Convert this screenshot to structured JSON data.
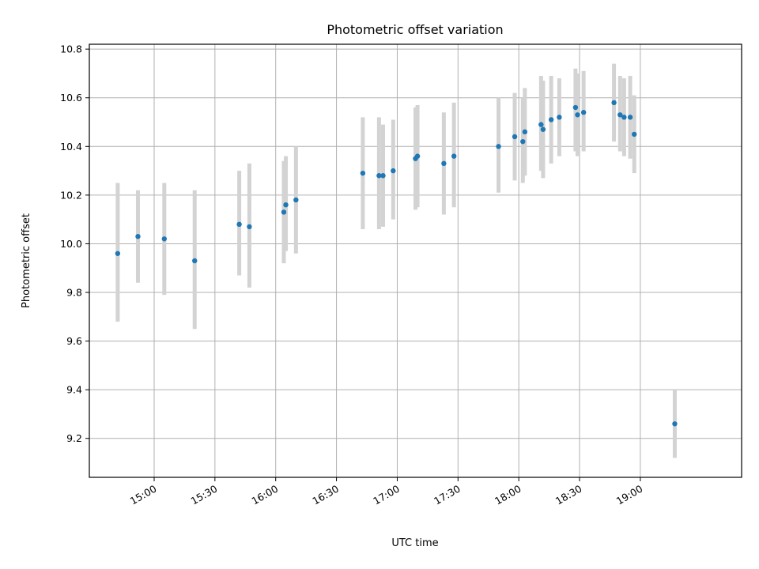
{
  "chart_data": {
    "type": "scatter",
    "title": "Photometric offset variation",
    "xlabel": "UTC time",
    "ylabel": "Photometric offset",
    "xlim": [
      "14:28",
      "19:50"
    ],
    "ylim": [
      9.04,
      10.82
    ],
    "x_ticks": [
      "15:00",
      "15:30",
      "16:00",
      "16:30",
      "17:00",
      "17:30",
      "18:00",
      "18:30",
      "19:00"
    ],
    "y_ticks": [
      "9.2",
      "9.4",
      "9.6",
      "9.8",
      "10.0",
      "10.2",
      "10.4",
      "10.6",
      "10.8"
    ],
    "grid": true,
    "colors": {
      "marker": "#1f77b4",
      "errorbar": "#d3d3d3"
    },
    "series": [
      {
        "points": [
          {
            "x": "14:42",
            "y": 9.96,
            "low": 9.68,
            "high": 10.25
          },
          {
            "x": "14:52",
            "y": 10.03,
            "low": 9.84,
            "high": 10.22
          },
          {
            "x": "15:05",
            "y": 10.02,
            "low": 9.79,
            "high": 10.25
          },
          {
            "x": "15:20",
            "y": 9.93,
            "low": 9.65,
            "high": 10.22
          },
          {
            "x": "15:42",
            "y": 10.08,
            "low": 9.87,
            "high": 10.3
          },
          {
            "x": "15:47",
            "y": 10.07,
            "low": 9.82,
            "high": 10.33
          },
          {
            "x": "16:04",
            "y": 10.13,
            "low": 9.92,
            "high": 10.34
          },
          {
            "x": "16:05",
            "y": 10.16,
            "low": 9.97,
            "high": 10.36
          },
          {
            "x": "16:10",
            "y": 10.18,
            "low": 9.96,
            "high": 10.4
          },
          {
            "x": "16:43",
            "y": 10.29,
            "low": 10.06,
            "high": 10.52
          },
          {
            "x": "16:51",
            "y": 10.28,
            "low": 10.06,
            "high": 10.52
          },
          {
            "x": "16:53",
            "y": 10.28,
            "low": 10.07,
            "high": 10.49
          },
          {
            "x": "16:58",
            "y": 10.3,
            "low": 10.1,
            "high": 10.51
          },
          {
            "x": "17:09",
            "y": 10.35,
            "low": 10.14,
            "high": 10.56
          },
          {
            "x": "17:10",
            "y": 10.36,
            "low": 10.15,
            "high": 10.57
          },
          {
            "x": "17:23",
            "y": 10.33,
            "low": 10.12,
            "high": 10.54
          },
          {
            "x": "17:28",
            "y": 10.36,
            "low": 10.15,
            "high": 10.58
          },
          {
            "x": "17:50",
            "y": 10.4,
            "low": 10.21,
            "high": 10.6
          },
          {
            "x": "17:58",
            "y": 10.44,
            "low": 10.26,
            "high": 10.62
          },
          {
            "x": "18:02",
            "y": 10.42,
            "low": 10.25,
            "high": 10.6
          },
          {
            "x": "18:03",
            "y": 10.46,
            "low": 10.28,
            "high": 10.64
          },
          {
            "x": "18:11",
            "y": 10.49,
            "low": 10.3,
            "high": 10.69
          },
          {
            "x": "18:12",
            "y": 10.47,
            "low": 10.27,
            "high": 10.67
          },
          {
            "x": "18:16",
            "y": 10.51,
            "low": 10.33,
            "high": 10.69
          },
          {
            "x": "18:20",
            "y": 10.52,
            "low": 10.36,
            "high": 10.68
          },
          {
            "x": "18:28",
            "y": 10.56,
            "low": 10.38,
            "high": 10.72
          },
          {
            "x": "18:29",
            "y": 10.53,
            "low": 10.36,
            "high": 10.7
          },
          {
            "x": "18:32",
            "y": 10.54,
            "low": 10.38,
            "high": 10.71
          },
          {
            "x": "18:47",
            "y": 10.58,
            "low": 10.42,
            "high": 10.74
          },
          {
            "x": "18:50",
            "y": 10.53,
            "low": 10.38,
            "high": 10.69
          },
          {
            "x": "18:52",
            "y": 10.52,
            "low": 10.36,
            "high": 10.68
          },
          {
            "x": "18:55",
            "y": 10.52,
            "low": 10.35,
            "high": 10.69
          },
          {
            "x": "18:57",
            "y": 10.45,
            "low": 10.29,
            "high": 10.61
          },
          {
            "x": "19:17",
            "y": 9.26,
            "low": 9.12,
            "high": 9.4
          }
        ]
      }
    ]
  }
}
